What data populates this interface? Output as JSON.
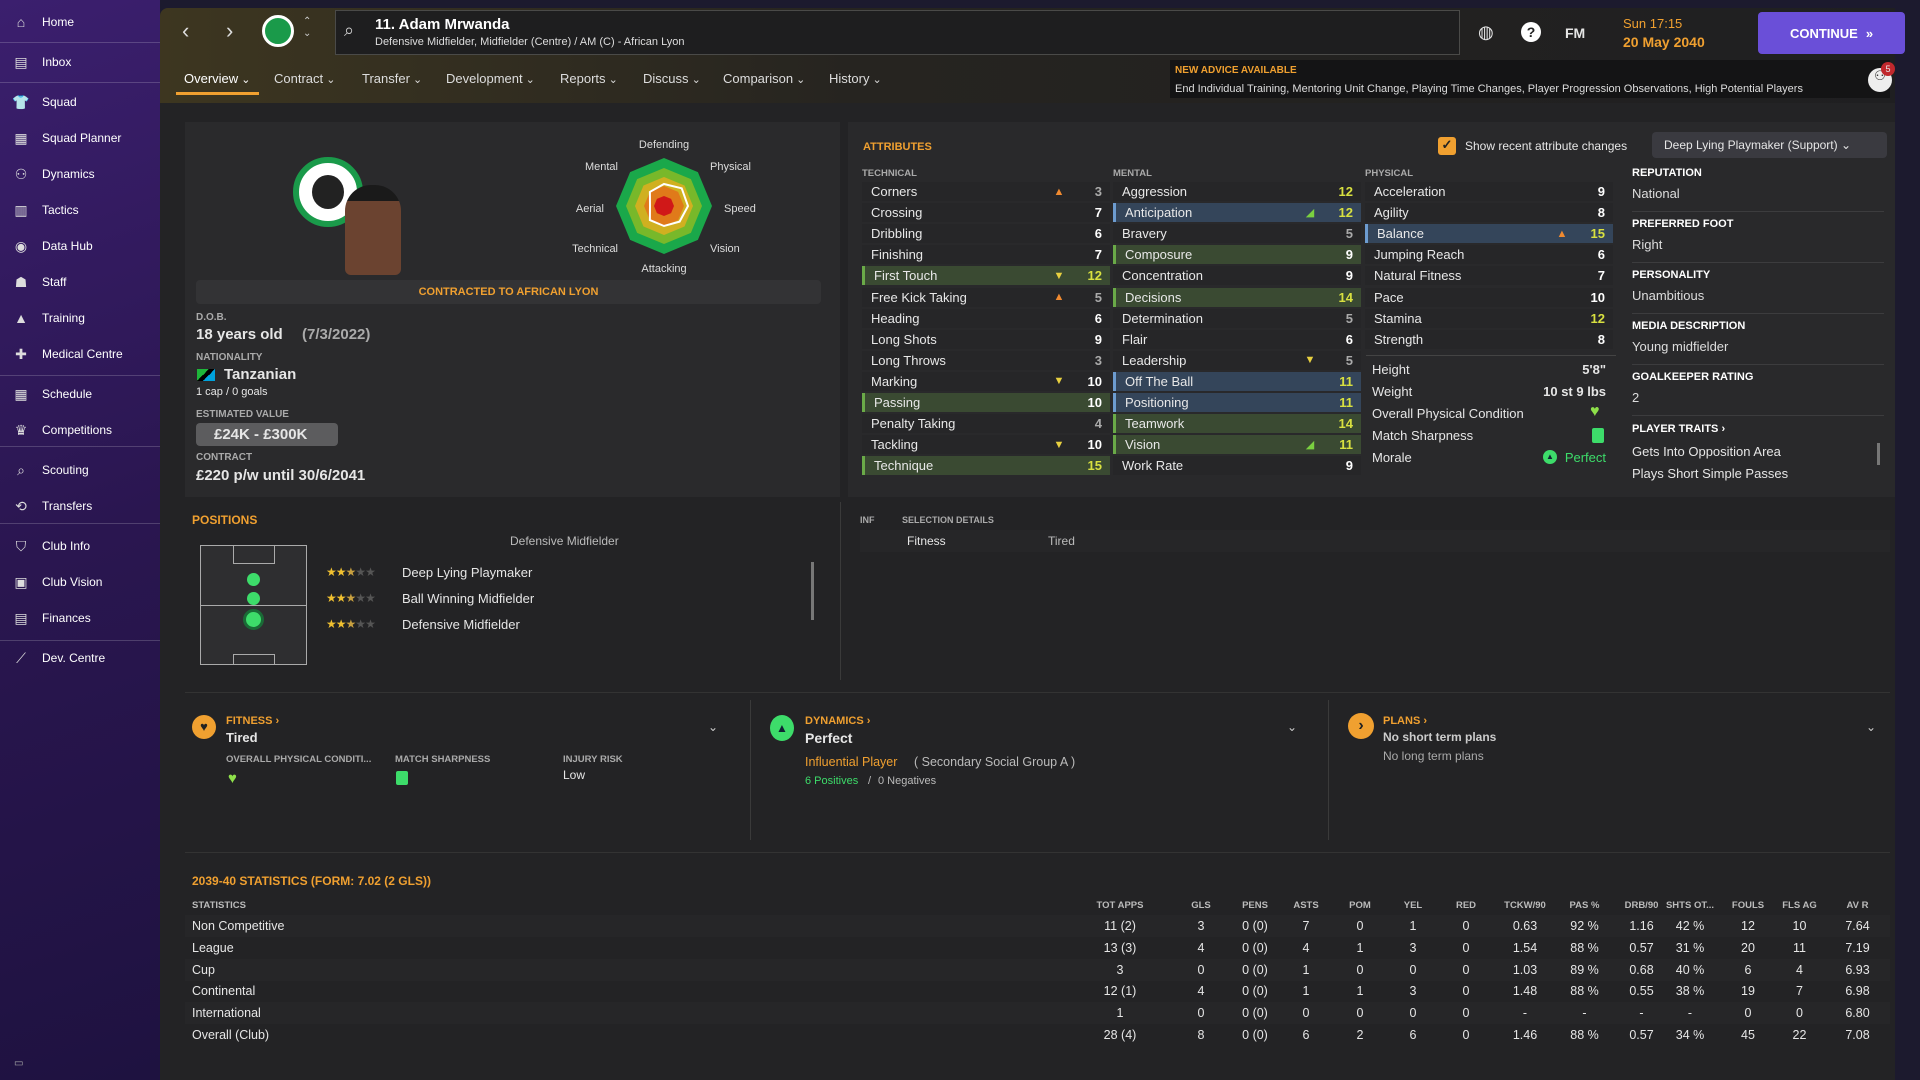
{
  "sidebar": {
    "items": [
      {
        "label": "Home",
        "icon": "home-icon",
        "g": "⌂"
      },
      {
        "label": "Inbox",
        "icon": "inbox-icon",
        "g": "▤"
      },
      {
        "label": "Squad",
        "icon": "shirt-icon",
        "g": "👕"
      },
      {
        "label": "Squad Planner",
        "icon": "clipboard-icon",
        "g": "▦"
      },
      {
        "label": "Dynamics",
        "icon": "people-icon",
        "g": "⚇"
      },
      {
        "label": "Tactics",
        "icon": "tactics-icon",
        "g": "▥"
      },
      {
        "label": "Data Hub",
        "icon": "data-hub-icon",
        "g": "◉"
      },
      {
        "label": "Staff",
        "icon": "staff-icon",
        "g": "☗"
      },
      {
        "label": "Training",
        "icon": "training-icon",
        "g": "▲"
      },
      {
        "label": "Medical Centre",
        "icon": "medical-icon",
        "g": "✚"
      },
      {
        "label": "Schedule",
        "icon": "calendar-icon",
        "g": "▦"
      },
      {
        "label": "Competitions",
        "icon": "trophy-icon",
        "g": "♛"
      },
      {
        "label": "Scouting",
        "icon": "scouting-icon",
        "g": "⌕"
      },
      {
        "label": "Transfers",
        "icon": "transfers-icon",
        "g": "⟲"
      },
      {
        "label": "Club Info",
        "icon": "shield-icon",
        "g": "⛉"
      },
      {
        "label": "Club Vision",
        "icon": "vision-icon",
        "g": "▣"
      },
      {
        "label": "Finances",
        "icon": "finances-icon",
        "g": "▤"
      },
      {
        "label": "Dev. Centre",
        "icon": "dev-centre-icon",
        "g": "⟋"
      }
    ]
  },
  "header": {
    "title": "11. Adam Mrwanda",
    "subtitle": "Defensive Midfielder, Midfielder (Centre) / AM (C) - African Lyon",
    "fm": "FM",
    "time": "Sun 17:15",
    "date": "20 May 2040",
    "continue": "CONTINUE",
    "notif_count": "5"
  },
  "tabs": [
    "Overview",
    "Contract",
    "Transfer",
    "Development",
    "Reports",
    "Discuss",
    "Comparison",
    "History"
  ],
  "advice": {
    "title": "NEW ADVICE AVAILABLE",
    "text": "End Individual Training, Mentoring Unit Change, Playing Time Changes, Player Progression Observations, High Potential Players"
  },
  "profile": {
    "radar_labels": [
      "Defending",
      "Physical",
      "Speed",
      "Vision",
      "Attacking",
      "Technical",
      "Aerial",
      "Mental"
    ],
    "contracted": "CONTRACTED TO AFRICAN LYON",
    "dob_label": "D.O.B.",
    "age": "18 years old",
    "dob": "(7/3/2022)",
    "nationality_label": "NATIONALITY",
    "nationality": "Tanzanian",
    "caps": "1 cap / 0 goals",
    "value_label": "ESTIMATED VALUE",
    "value": "£24K - £300K",
    "contract_label": "CONTRACT",
    "contract": "£220 p/w until 30/6/2041"
  },
  "attributes": {
    "title": "ATTRIBUTES",
    "show_changes": "Show recent attribute changes",
    "show_changes_checked": true,
    "role": "Deep Lying Playmaker (Support)",
    "columns": [
      {
        "title": "TECHNICAL",
        "rows": [
          [
            "Corners",
            3,
            "",
            "up-orange"
          ],
          [
            "Crossing",
            7,
            "",
            ""
          ],
          [
            "Dribbling",
            6,
            "",
            ""
          ],
          [
            "Finishing",
            7,
            "",
            ""
          ],
          [
            "First Touch",
            12,
            "green",
            "down-yellow"
          ],
          [
            "Free Kick Taking",
            5,
            "",
            "up-orange"
          ],
          [
            "Heading",
            6,
            "",
            ""
          ],
          [
            "Long Shots",
            9,
            "",
            ""
          ],
          [
            "Long Throws",
            3,
            "",
            ""
          ],
          [
            "Marking",
            10,
            "",
            "down-yellow"
          ],
          [
            "Passing",
            10,
            "green",
            ""
          ],
          [
            "Penalty Taking",
            4,
            "",
            ""
          ],
          [
            "Tackling",
            10,
            "",
            "down-yellow"
          ],
          [
            "Technique",
            15,
            "green",
            ""
          ]
        ]
      },
      {
        "title": "MENTAL",
        "rows": [
          [
            "Aggression",
            12,
            "",
            ""
          ],
          [
            "Anticipation",
            12,
            "blue",
            "up-green"
          ],
          [
            "Bravery",
            5,
            "",
            ""
          ],
          [
            "Composure",
            9,
            "green",
            ""
          ],
          [
            "Concentration",
            9,
            "",
            ""
          ],
          [
            "Decisions",
            14,
            "green",
            ""
          ],
          [
            "Determination",
            5,
            "",
            ""
          ],
          [
            "Flair",
            6,
            "",
            ""
          ],
          [
            "Leadership",
            5,
            "",
            "down-yellow"
          ],
          [
            "Off The Ball",
            11,
            "blue",
            ""
          ],
          [
            "Positioning",
            11,
            "blue",
            ""
          ],
          [
            "Teamwork",
            14,
            "green",
            ""
          ],
          [
            "Vision",
            11,
            "green",
            "up-green"
          ],
          [
            "Work Rate",
            9,
            "",
            ""
          ]
        ]
      },
      {
        "title": "PHYSICAL",
        "rows": [
          [
            "Acceleration",
            9,
            "",
            ""
          ],
          [
            "Agility",
            8,
            "",
            ""
          ],
          [
            "Balance",
            15,
            "blue",
            "up-orange"
          ],
          [
            "Jumping Reach",
            6,
            "",
            ""
          ],
          [
            "Natural Fitness",
            7,
            "",
            ""
          ],
          [
            "Pace",
            10,
            "",
            ""
          ],
          [
            "Stamina",
            12,
            "",
            ""
          ],
          [
            "Strength",
            8,
            "",
            ""
          ]
        ]
      }
    ],
    "physical_extra": {
      "height_label": "Height",
      "height": "5'8\"",
      "weight_label": "Weight",
      "weight": "10 st 9 lbs",
      "condition_label": "Overall Physical Condition",
      "sharpness_label": "Match Sharpness",
      "morale_label": "Morale",
      "morale": "Perfect"
    }
  },
  "info": [
    {
      "h": "REPUTATION",
      "v": "National"
    },
    {
      "h": "PREFERRED FOOT",
      "v": "Right"
    },
    {
      "h": "PERSONALITY",
      "v": "Unambitious"
    },
    {
      "h": "MEDIA DESCRIPTION",
      "v": "Young midfielder"
    },
    {
      "h": "GOALKEEPER RATING",
      "v": "2"
    }
  ],
  "traits": {
    "title": "PLAYER TRAITS ›",
    "items": [
      "Gets Into Opposition Area",
      "Plays Short Simple Passes"
    ]
  },
  "positions": {
    "title": "POSITIONS",
    "current": "Defensive Midfielder",
    "roles": [
      {
        "name": "Deep Lying Playmaker",
        "stars": 2.5
      },
      {
        "name": "Ball Winning Midfielder",
        "stars": 2.5
      },
      {
        "name": "Defensive Midfielder",
        "stars": 2.5
      }
    ]
  },
  "selection": {
    "inf": "INF",
    "title": "SELECTION DETAILS",
    "fitness_label": "Fitness",
    "fitness": "Tired"
  },
  "fitness": {
    "title": "FITNESS ›",
    "status": "Tired",
    "cond_label": "OVERALL PHYSICAL CONDITI...",
    "sharp_label": "MATCH SHARPNESS",
    "injury_label": "INJURY RISK",
    "injury": "Low"
  },
  "dynamics": {
    "title": "DYNAMICS ›",
    "status": "Perfect",
    "role": "Influential Player",
    "group": "( Secondary Social Group A )",
    "positives": "6 Positives",
    "negatives": "0 Negatives"
  },
  "plans": {
    "title": "PLANS ›",
    "short": "No short term plans",
    "long": "No long term plans"
  },
  "stats": {
    "title": "2039-40 STATISTICS (FORM: 7.02 (2 GLS))",
    "headers": [
      "STATISTICS",
      "TOT APPS",
      "GLS",
      "PENS",
      "ASTS",
      "POM",
      "YEL",
      "RED",
      "TCKW/90",
      "PAS %",
      "DRB/90",
      "SHTS OT...",
      "FOULS",
      "FLS AG",
      "AV R"
    ],
    "rows": [
      [
        "Non Competitive",
        "11 (2)",
        "3",
        "0 (0)",
        "7",
        "0",
        "1",
        "0",
        "0.63",
        "92 %",
        "1.16",
        "42 %",
        "12",
        "10",
        "7.64"
      ],
      [
        "League",
        "13 (3)",
        "4",
        "0 (0)",
        "4",
        "1",
        "3",
        "0",
        "1.54",
        "88 %",
        "0.57",
        "31 %",
        "20",
        "11",
        "7.19"
      ],
      [
        "Cup",
        "3",
        "0",
        "0 (0)",
        "1",
        "0",
        "0",
        "0",
        "1.03",
        "89 %",
        "0.68",
        "40 %",
        "6",
        "4",
        "6.93"
      ],
      [
        "Continental",
        "12 (1)",
        "4",
        "0 (0)",
        "1",
        "1",
        "3",
        "0",
        "1.48",
        "88 %",
        "0.55",
        "38 %",
        "19",
        "7",
        "6.98"
      ],
      [
        "International",
        "1",
        "0",
        "0 (0)",
        "0",
        "0",
        "0",
        "0",
        "-",
        "-",
        "-",
        "-",
        "0",
        "0",
        "6.80"
      ],
      [
        "Overall (Club)",
        "28 (4)",
        "8",
        "0 (0)",
        "6",
        "2",
        "6",
        "0",
        "1.46",
        "88 %",
        "0.57",
        "34 %",
        "45",
        "22",
        "7.08"
      ]
    ]
  },
  "colors": {
    "accent": "#f0a030",
    "continue": "#6a4fd8",
    "high": "#d8e040",
    "green": "#3ddc6a"
  }
}
